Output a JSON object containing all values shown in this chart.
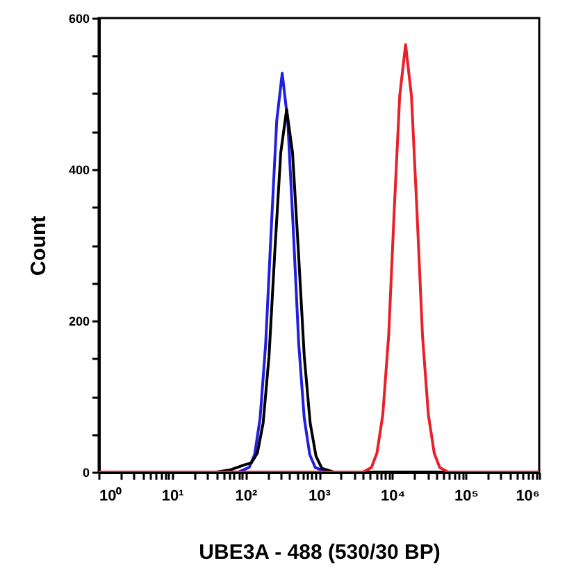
{
  "chart_data": {
    "type": "line",
    "xlabel": "UBE3A - 488 (530/30 BP)",
    "ylabel": "Count",
    "log": "x",
    "xlim": [
      1,
      1000000
    ],
    "ylim": [
      0,
      600
    ],
    "xticks": [
      {
        "value": 1,
        "label": "10⁰"
      },
      {
        "value": 2,
        "label": null
      },
      {
        "value": 3,
        "label": null
      },
      {
        "value": 4,
        "label": null
      },
      {
        "value": 5,
        "label": null
      },
      {
        "value": 6,
        "label": null
      },
      {
        "value": 7,
        "label": null
      },
      {
        "value": 8,
        "label": null
      },
      {
        "value": 9,
        "label": null
      },
      {
        "value": 10,
        "label": "10¹"
      },
      {
        "value": 20,
        "label": null
      },
      {
        "value": 30,
        "label": null
      },
      {
        "value": 40,
        "label": null
      },
      {
        "value": 50,
        "label": null
      },
      {
        "value": 60,
        "label": null
      },
      {
        "value": 70,
        "label": null
      },
      {
        "value": 80,
        "label": null
      },
      {
        "value": 90,
        "label": null
      },
      {
        "value": 100,
        "label": "10²"
      },
      {
        "value": 200,
        "label": null
      },
      {
        "value": 300,
        "label": null
      },
      {
        "value": 400,
        "label": null
      },
      {
        "value": 500,
        "label": null
      },
      {
        "value": 600,
        "label": null
      },
      {
        "value": 700,
        "label": null
      },
      {
        "value": 800,
        "label": null
      },
      {
        "value": 900,
        "label": null
      },
      {
        "value": 1000,
        "label": "10³"
      },
      {
        "value": 2000,
        "label": null
      },
      {
        "value": 3000,
        "label": null
      },
      {
        "value": 4000,
        "label": null
      },
      {
        "value": 5000,
        "label": null
      },
      {
        "value": 6000,
        "label": null
      },
      {
        "value": 7000,
        "label": null
      },
      {
        "value": 8000,
        "label": null
      },
      {
        "value": 9000,
        "label": null
      },
      {
        "value": 10000,
        "label": "10⁴"
      },
      {
        "value": 20000,
        "label": null
      },
      {
        "value": 30000,
        "label": null
      },
      {
        "value": 40000,
        "label": null
      },
      {
        "value": 50000,
        "label": null
      },
      {
        "value": 60000,
        "label": null
      },
      {
        "value": 70000,
        "label": null
      },
      {
        "value": 80000,
        "label": null
      },
      {
        "value": 90000,
        "label": null
      },
      {
        "value": 100000,
        "label": "10⁵"
      },
      {
        "value": 200000,
        "label": null
      },
      {
        "value": 300000,
        "label": null
      },
      {
        "value": 400000,
        "label": null
      },
      {
        "value": 500000,
        "label": null
      },
      {
        "value": 600000,
        "label": null
      },
      {
        "value": 700000,
        "label": null
      },
      {
        "value": 800000,
        "label": null
      },
      {
        "value": 900000,
        "label": null
      },
      {
        "value": 1000000,
        "label": "10⁶"
      }
    ],
    "yticks": [
      0,
      {
        "value": 50,
        "label": null
      },
      {
        "value": 100,
        "label": null
      },
      {
        "value": 150,
        "label": null
      },
      200,
      {
        "value": 250,
        "label": null
      },
      {
        "value": 300,
        "label": null
      },
      {
        "value": 350,
        "label": null
      },
      400,
      {
        "value": 450,
        "label": null
      },
      {
        "value": 500,
        "label": null
      },
      {
        "value": 550,
        "label": null
      },
      600
    ],
    "grid": false,
    "marker": "none",
    "line_style": "solid",
    "series": [
      {
        "color": "#1f1fe0",
        "x": [
          1,
          79,
          112,
          133,
          158,
          188,
          224,
          266,
          316,
          376,
          447,
          531,
          631,
          750,
          891,
          1259,
          1000000
        ],
        "values": [
          0,
          0,
          6,
          23,
          71,
          169,
          321,
          464,
          527,
          464,
          321,
          169,
          71,
          23,
          6,
          0,
          0
        ]
      },
      {
        "color": "#000000",
        "x": [
          1,
          40,
          63,
          100,
          120,
          145,
          174,
          209,
          251,
          302,
          363,
          437,
          525,
          631,
          759,
          912,
          1096,
          1585,
          1000000
        ],
        "values": [
          0,
          0,
          3,
          10,
          12,
          25,
          65,
          153,
          292,
          422,
          479,
          422,
          292,
          153,
          65,
          21,
          5,
          0,
          0
        ]
      },
      {
        "color": "#e8202a",
        "x": [
          1,
          3981,
          5188,
          6166,
          7413,
          8913,
          10593,
          12589,
          15136,
          18197,
          21627,
          25704,
          30903,
          37154,
          44157,
          57544,
          1000000
        ],
        "values": [
          0,
          0,
          6,
          25,
          76,
          181,
          345,
          497,
          565,
          497,
          345,
          181,
          76,
          25,
          6,
          0,
          0
        ]
      }
    ]
  }
}
